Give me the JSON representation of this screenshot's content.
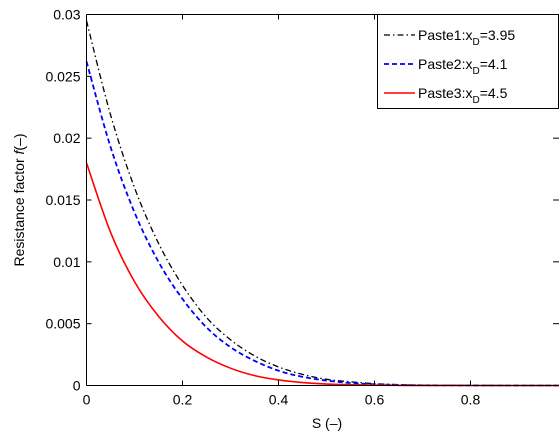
{
  "chart_data": {
    "type": "line",
    "xlabel": "S (–)",
    "ylabel_main": "Resistance factor ",
    "ylabel_symbol": "f",
    "ylabel_unit": "(–)",
    "xlim": [
      0,
      1
    ],
    "ylim": [
      0,
      0.03
    ],
    "x_ticks": [
      0,
      0.2,
      0.4,
      0.6,
      0.8
    ],
    "x_tick_labels": [
      "0",
      "0.2",
      "0.4",
      "0.6",
      "0.8"
    ],
    "y_ticks": [
      0,
      0.005,
      0.01,
      0.015,
      0.02,
      0.025,
      0.03
    ],
    "y_tick_labels": [
      "0",
      "0.005",
      "0.01",
      "0.015",
      "0.02",
      "0.025",
      "0.03"
    ],
    "grid": false,
    "legend_position": "top-right",
    "x": [
      0,
      0.05,
      0.1,
      0.15,
      0.2,
      0.25,
      0.3,
      0.35,
      0.4,
      0.45,
      0.5,
      0.55,
      0.6,
      0.65,
      0.7,
      0.8,
      0.9,
      1.0
    ],
    "series": [
      {
        "name": "Paste1:x",
        "name_sub": "D",
        "name_tail": "=3.95",
        "color": "#000000",
        "style": "dashdot",
        "values": [
          0.0295,
          0.0219,
          0.016,
          0.0115,
          0.0081,
          0.0055,
          0.0037,
          0.0024,
          0.0015,
          0.0009,
          0.0005,
          0.0003,
          0.00015,
          7e-05,
          3e-05,
          1e-05,
          0,
          0
        ]
      },
      {
        "name": "Paste2:x",
        "name_sub": "D",
        "name_tail": "=4.1",
        "color": "#0000ff",
        "style": "dashed",
        "values": [
          0.0262,
          0.0193,
          0.014,
          0.01,
          0.007,
          0.0047,
          0.0031,
          0.002,
          0.0012,
          0.0007,
          0.0004,
          0.0002,
          0.0001,
          5e-05,
          2e-05,
          5e-06,
          0,
          0
        ]
      },
      {
        "name": "Paste3:x",
        "name_sub": "D",
        "name_tail": "=4.5",
        "color": "#ff0000",
        "style": "solid",
        "values": [
          0.018,
          0.0124,
          0.0084,
          0.0056,
          0.0036,
          0.0023,
          0.0014,
          0.0008,
          0.00045,
          0.00024,
          0.00012,
          6e-05,
          3e-05,
          1e-05,
          5e-06,
          0,
          0,
          0
        ]
      }
    ]
  }
}
